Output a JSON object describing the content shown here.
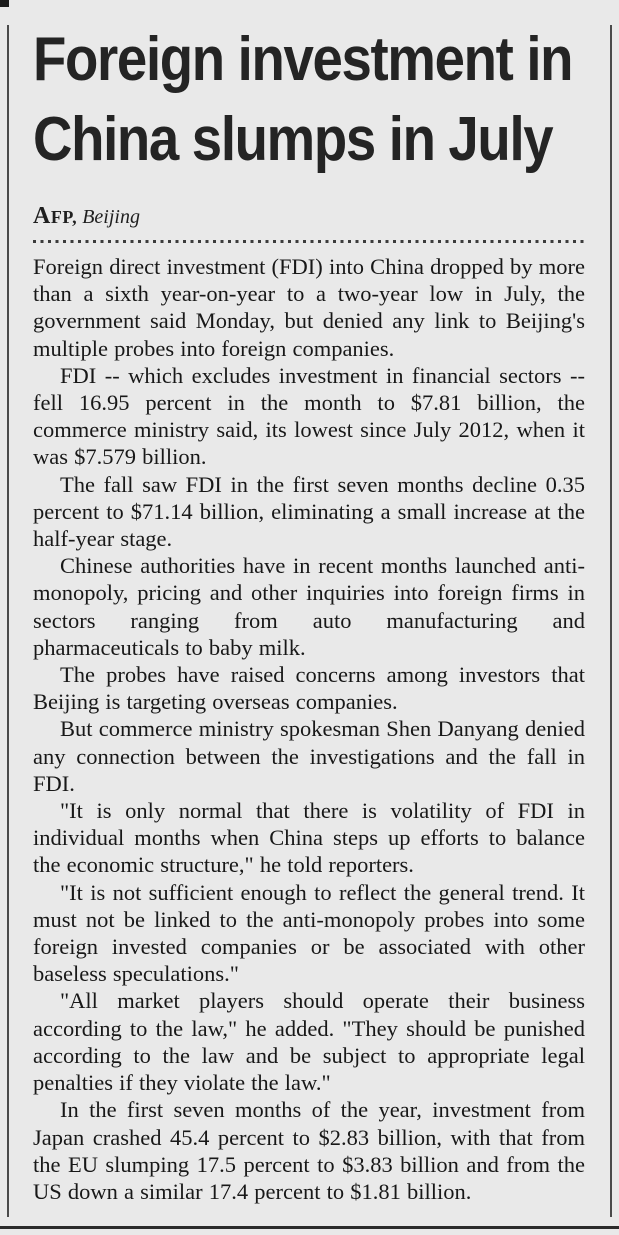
{
  "page": {
    "background_color": "#e9e9e9",
    "rule_color": "#4a4a4a",
    "text_color": "#181818"
  },
  "article": {
    "headline": "Foreign investment in China slumps in July",
    "headline_lines": [
      "Foreign investment in",
      "China slumps in July"
    ],
    "byline": {
      "agency": "AFP,",
      "location": "Beijing"
    },
    "paragraphs": [
      "Foreign direct investment (FDI) into China dropped by more than a sixth year-on-year to a two-year low in July, the government said Monday, but denied any link to Beijing's multiple probes into foreign companies.",
      "FDI -- which excludes investment in financial sectors -- fell 16.95 percent in the month to $7.81 billion, the commerce ministry said, its lowest since July 2012, when it was $7.579 billion.",
      "The fall saw FDI in the first seven months decline 0.35 percent to $71.14 billion, eliminating a small increase at the half-year stage.",
      "Chinese authorities have in recent months launched anti-monopoly, pricing and other inquiries into foreign firms in sectors ranging from auto manufacturing and pharmaceuticals to baby milk.",
      "The probes have raised concerns among investors that Beijing is targeting overseas companies.",
      "But commerce ministry spokesman Shen Danyang denied any connection between the investigations and the fall in FDI.",
      "\"It is only normal that there is volatility of FDI in individual months when China steps up efforts to balance the economic structure,\" he told reporters.",
      "\"It is not sufficient enough to reflect the general trend. It must not be linked to the anti-monopoly probes into some foreign invested companies or be associated with other baseless speculations.\"",
      "\"All market players should operate their business according to the law,\" he added. \"They should be punished according to the law and be subject to appropriate legal penalties if they violate the law.\"",
      "In the first seven months of the year, investment from Japan crashed 45.4 percent to $2.83 billion, with that from the EU slumping 17.5 percent to $3.83 billion and from the US down a similar 17.4 percent to $1.81 billion."
    ]
  }
}
